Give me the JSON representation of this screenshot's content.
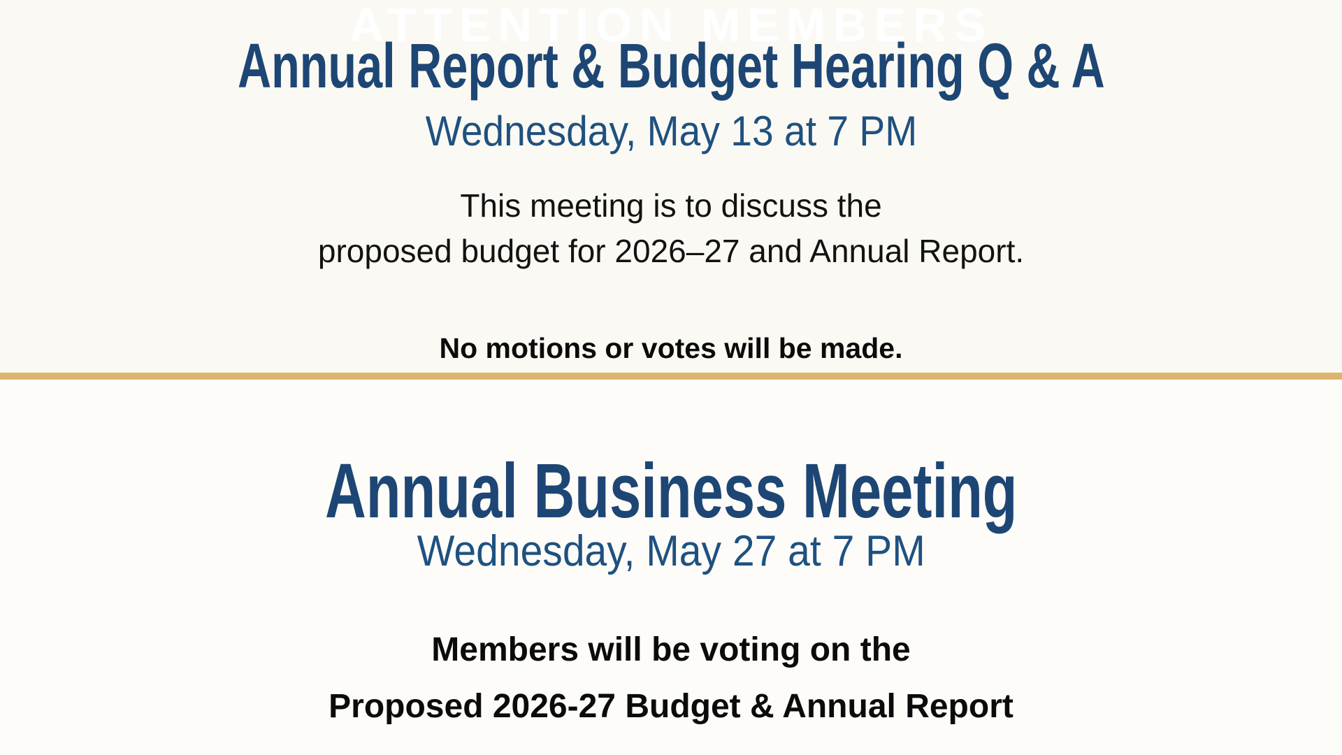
{
  "page": {
    "watermark": "ATTENTION MEMBERS",
    "colors": {
      "background_top": "#FBF9F3",
      "background_bottom": "#FDFCF8",
      "divider_gold": "#DDB46F",
      "heading_navy": "#1D4674",
      "date_blue": "#1F5180",
      "body_black": "#121212",
      "watermark_white": "#FFFFFF"
    }
  },
  "section_top": {
    "title": "Annual Report & Budget Hearing Q & A",
    "datetime": "Wednesday, May 13 at 7 PM",
    "body_line1": "This meeting is to discuss the",
    "body_line2": "proposed budget for 2026–27 and Annual Report.",
    "note": "No motions or votes will be made."
  },
  "section_bottom": {
    "title": "Annual Business Meeting",
    "datetime": "Wednesday, May 27 at 7 PM",
    "note_line1": "Members will be voting on the",
    "note_line2": "Proposed 2026-27 Budget & Annual Report"
  }
}
